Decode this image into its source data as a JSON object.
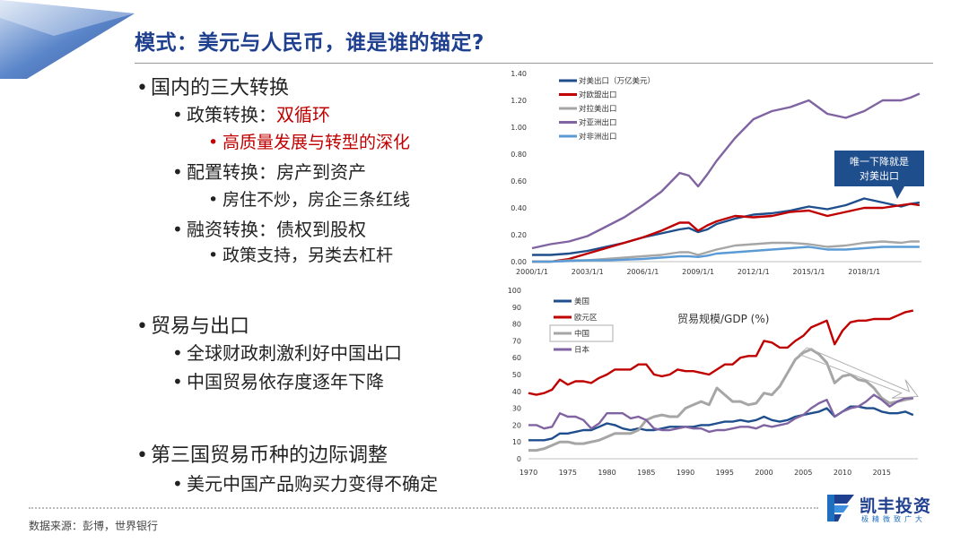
{
  "slide": {
    "title": "模式：美元与人民币，谁是谁的锚定?",
    "source": "数据来源：彭博，世界银行",
    "logo_name": "凯丰投资",
    "logo_sub": "极精微致广大"
  },
  "bullets": [
    {
      "level": 1,
      "text": "国内的三大转换",
      "red": false
    },
    {
      "level": 2,
      "prefix": "政策转换：",
      "text": "双循环",
      "red": true
    },
    {
      "level": 3,
      "text": "高质量发展与转型的深化",
      "red": true
    },
    {
      "level": 2,
      "text": "配置转换：房产到资产",
      "red": false
    },
    {
      "level": 3,
      "text": "房住不炒，房企三条红线",
      "red": false
    },
    {
      "level": 2,
      "text": "融资转换：债权到股权",
      "red": false
    },
    {
      "level": 3,
      "text": "政策支持，另类去杠杆",
      "red": false
    },
    {
      "level": 1,
      "text": "贸易与出口",
      "red": false
    },
    {
      "level": 2,
      "text": "全球财政刺激利好中国出口",
      "red": false
    },
    {
      "level": 2,
      "text": "中国贸易依存度逐年下降",
      "red": false
    },
    {
      "level": 1,
      "text": "第三国贸易币种的边际调整",
      "red": false
    },
    {
      "level": 2,
      "text": "美元中国产品购买力变得不确定",
      "red": false
    }
  ],
  "colors": {
    "title": "#1f3f8f",
    "navy": "#1f4e8c",
    "red": "#c00000",
    "gray": "#a6a6a6",
    "purple": "#8064a2",
    "lightblue": "#5b9bd5"
  },
  "chart_data": [
    {
      "type": "line",
      "title": "",
      "xlabel": "",
      "ylabel": "",
      "x": [
        "2000/1/1",
        "2001/1/1",
        "2002/1/1",
        "2003/1/1",
        "2004/1/1",
        "2005/1/1",
        "2006/1/1",
        "2007/1/1",
        "2008/1/1",
        "2008/7/1",
        "2009/1/1",
        "2009/7/1",
        "2010/1/1",
        "2011/1/1",
        "2012/1/1",
        "2013/1/1",
        "2014/1/1",
        "2015/1/1",
        "2016/1/1",
        "2017/1/1",
        "2018/1/1",
        "2019/1/1",
        "2020/1/1",
        "2020/7/1",
        "2021/1/1"
      ],
      "x_ticks": [
        "2000/1/1",
        "2003/1/1",
        "2006/1/1",
        "2009/1/1",
        "2012/1/1",
        "2015/1/1",
        "2018/1/1"
      ],
      "ylim": [
        0,
        1.4
      ],
      "y_ticks": [
        "0.00",
        "0.20",
        "0.40",
        "0.60",
        "0.80",
        "1.00",
        "1.20",
        "1.40"
      ],
      "legend_position": "top-left",
      "series": [
        {
          "name": "对美出口（万亿美元）",
          "color": "#1f4e8c",
          "values": [
            0.05,
            0.05,
            0.06,
            0.08,
            0.11,
            0.14,
            0.18,
            0.21,
            0.24,
            0.25,
            0.22,
            0.24,
            0.28,
            0.32,
            0.35,
            0.36,
            0.38,
            0.41,
            0.39,
            0.42,
            0.47,
            0.44,
            0.41,
            0.43,
            0.44
          ]
        },
        {
          "name": "对欧盟出口",
          "color": "#c00000",
          "values": [
            0.0,
            0.0,
            0.02,
            0.06,
            0.1,
            0.14,
            0.18,
            0.23,
            0.29,
            0.29,
            0.23,
            0.27,
            0.3,
            0.34,
            0.33,
            0.34,
            0.37,
            0.38,
            0.34,
            0.37,
            0.4,
            0.4,
            0.42,
            0.43,
            0.42
          ]
        },
        {
          "name": "对拉美出口",
          "color": "#a6a6a6",
          "values": [
            0.0,
            0.0,
            0.01,
            0.01,
            0.02,
            0.03,
            0.04,
            0.05,
            0.07,
            0.07,
            0.05,
            0.07,
            0.09,
            0.12,
            0.13,
            0.14,
            0.14,
            0.13,
            0.11,
            0.12,
            0.14,
            0.15,
            0.14,
            0.15,
            0.15
          ]
        },
        {
          "name": "对亚洲出口",
          "color": "#8064a2",
          "values": [
            0.1,
            0.13,
            0.15,
            0.19,
            0.26,
            0.33,
            0.42,
            0.52,
            0.66,
            0.64,
            0.56,
            0.65,
            0.75,
            0.92,
            1.06,
            1.12,
            1.15,
            1.2,
            1.1,
            1.07,
            1.12,
            1.2,
            1.2,
            1.22,
            1.25
          ]
        },
        {
          "name": "对非洲出口",
          "color": "#5b9bd5",
          "values": [
            0.0,
            0.0,
            0.005,
            0.01,
            0.01,
            0.015,
            0.02,
            0.03,
            0.04,
            0.04,
            0.035,
            0.045,
            0.06,
            0.07,
            0.08,
            0.09,
            0.1,
            0.11,
            0.09,
            0.09,
            0.1,
            0.11,
            0.11,
            0.11,
            0.11
          ]
        }
      ],
      "annotation": {
        "text_line1": "唯一下降就是",
        "text_line2": "对美出口"
      }
    },
    {
      "type": "line",
      "title": "贸易规模/GDP (%)",
      "xlabel": "",
      "ylabel": "",
      "x": [
        1970,
        1971,
        1972,
        1973,
        1974,
        1975,
        1976,
        1977,
        1978,
        1979,
        1980,
        1981,
        1982,
        1983,
        1984,
        1985,
        1986,
        1987,
        1988,
        1989,
        1990,
        1991,
        1992,
        1993,
        1994,
        1995,
        1996,
        1997,
        1998,
        1999,
        2000,
        2001,
        2002,
        2003,
        2004,
        2005,
        2006,
        2007,
        2008,
        2009,
        2010,
        2011,
        2012,
        2013,
        2014,
        2015,
        2016,
        2017,
        2018,
        2019
      ],
      "x_ticks": [
        1970,
        1975,
        1980,
        1985,
        1990,
        1995,
        2000,
        2005,
        2010,
        2015
      ],
      "ylim": [
        0,
        100
      ],
      "y_ticks": [
        0,
        10,
        20,
        30,
        40,
        50,
        60,
        70,
        80,
        90,
        100
      ],
      "legend_position": "top-left",
      "series": [
        {
          "name": "美国",
          "color": "#1f4e8c",
          "values": [
            11,
            11,
            11,
            12,
            15,
            15,
            16,
            17,
            17,
            19,
            21,
            20,
            18,
            17,
            18,
            17,
            17,
            18,
            19,
            19,
            19,
            19,
            20,
            20,
            21,
            22,
            22,
            23,
            22,
            23,
            25,
            23,
            22,
            23,
            25,
            26,
            27,
            28,
            30,
            25,
            28,
            31,
            31,
            30,
            30,
            28,
            27,
            27,
            28,
            26
          ]
        },
        {
          "name": "欧元区",
          "color": "#c00000",
          "values": [
            39,
            38,
            39,
            41,
            47,
            44,
            46,
            46,
            45,
            48,
            50,
            53,
            53,
            53,
            56,
            56,
            50,
            49,
            50,
            53,
            52,
            52,
            51,
            50,
            53,
            56,
            56,
            60,
            61,
            61,
            70,
            69,
            66,
            66,
            70,
            73,
            78,
            80,
            82,
            68,
            76,
            81,
            82,
            82,
            83,
            83,
            83,
            85,
            87,
            88
          ]
        },
        {
          "name": "中国",
          "color": "#a6a6a6",
          "values": [
            5,
            5,
            6,
            8,
            10,
            10,
            9,
            9,
            10,
            11,
            13,
            15,
            15,
            15,
            17,
            23,
            25,
            26,
            25,
            25,
            30,
            32,
            34,
            32,
            42,
            38,
            34,
            34,
            32,
            33,
            39,
            38,
            43,
            51,
            59,
            63,
            65,
            62,
            57,
            45,
            49,
            50,
            47,
            46,
            42,
            36,
            33,
            34,
            35,
            36
          ]
        },
        {
          "name": "日本",
          "color": "#8064a2",
          "values": [
            20,
            20,
            18,
            19,
            27,
            25,
            25,
            23,
            18,
            21,
            27,
            27,
            27,
            24,
            25,
            23,
            18,
            17,
            17,
            18,
            19,
            18,
            18,
            16,
            17,
            17,
            18,
            19,
            19,
            18,
            20,
            19,
            20,
            21,
            24,
            26,
            30,
            33,
            35,
            25,
            28,
            30,
            31,
            34,
            38,
            35,
            31,
            34,
            36,
            36
          ]
        }
      ]
    }
  ]
}
